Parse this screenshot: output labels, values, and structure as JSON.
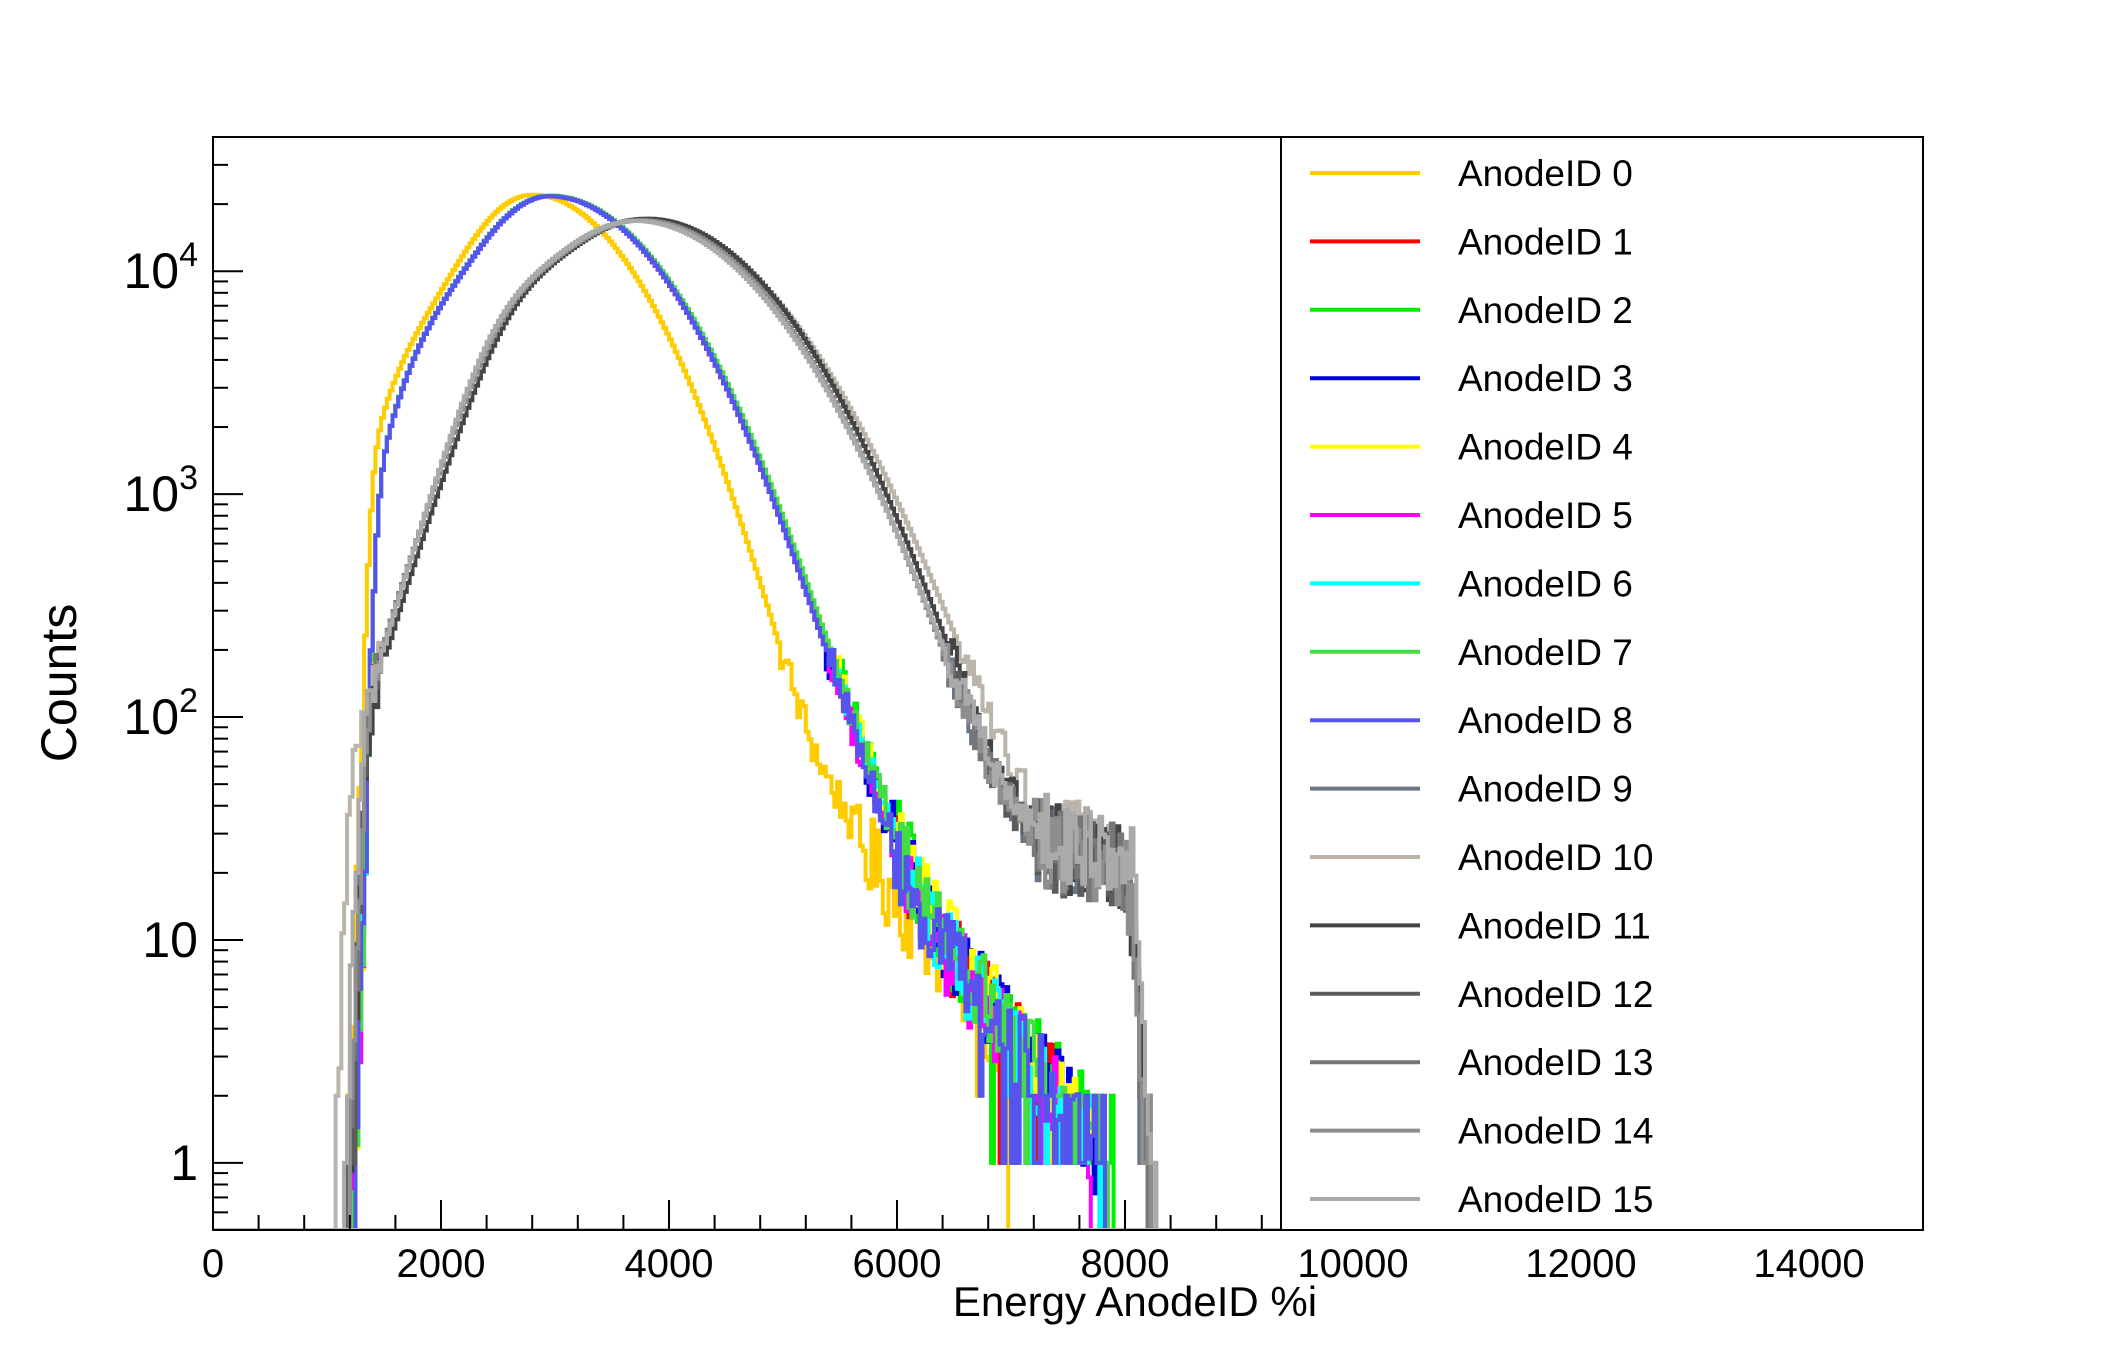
{
  "chart_data": {
    "type": "line",
    "title": "",
    "xlabel": "Energy AnodeID %i",
    "ylabel": "Counts",
    "xlim": [
      0,
      15000
    ],
    "ylim": [
      0.5,
      40000
    ],
    "yscale": "log",
    "grid": false,
    "legend_position": "right-inside",
    "x_ticks": [
      0,
      2000,
      4000,
      6000,
      8000,
      10000,
      12000,
      14000
    ],
    "x_tick_labels": [
      "0",
      "2000",
      "4000",
      "6000",
      "8000",
      "10000",
      "12000",
      "14000"
    ],
    "y_ticks": [
      1,
      10,
      100,
      1000,
      10000
    ],
    "y_tick_labels": [
      {
        "base": "1",
        "exp": ""
      },
      {
        "base": "10",
        "exp": ""
      },
      {
        "base": "10",
        "exp": "2"
      },
      {
        "base": "10",
        "exp": "3"
      },
      {
        "base": "10",
        "exp": "4"
      }
    ],
    "series": [
      {
        "name": "AnodeID 0",
        "color": "#ffcc00",
        "group": "low",
        "peak_x": 2800,
        "peak_y": 22000,
        "w_left": 520,
        "w_right": 700,
        "tail_y": 30,
        "tail_end": 7000,
        "start_x": 1200
      },
      {
        "name": "AnodeID 1",
        "color": "#ff0000",
        "group": "low",
        "peak_x": 2950,
        "peak_y": 21800,
        "w_left": 560,
        "w_right": 780,
        "tail_y": 32,
        "tail_end": 7850,
        "start_x": 1250
      },
      {
        "name": "AnodeID 2",
        "color": "#00ee00",
        "group": "low",
        "peak_x": 2950,
        "peak_y": 21800,
        "w_left": 560,
        "w_right": 790,
        "tail_y": 34,
        "tail_end": 7950,
        "start_x": 1250
      },
      {
        "name": "AnodeID 3",
        "color": "#0000dd",
        "group": "low",
        "peak_x": 2950,
        "peak_y": 21700,
        "w_left": 560,
        "w_right": 780,
        "tail_y": 32,
        "tail_end": 7850,
        "start_x": 1250
      },
      {
        "name": "AnodeID 4",
        "color": "#ffff00",
        "group": "low",
        "peak_x": 2950,
        "peak_y": 21800,
        "w_left": 560,
        "w_right": 790,
        "tail_y": 34,
        "tail_end": 7900,
        "start_x": 1250
      },
      {
        "name": "AnodeID 5",
        "color": "#ff00ff",
        "group": "low",
        "peak_x": 2950,
        "peak_y": 21700,
        "w_left": 560,
        "w_right": 780,
        "tail_y": 30,
        "tail_end": 7800,
        "start_x": 1250
      },
      {
        "name": "AnodeID 6",
        "color": "#00ffff",
        "group": "low",
        "peak_x": 2950,
        "peak_y": 21800,
        "w_left": 560,
        "w_right": 790,
        "tail_y": 30,
        "tail_end": 7900,
        "start_x": 1250
      },
      {
        "name": "AnodeID 7",
        "color": "#44dd44",
        "group": "low",
        "peak_x": 2950,
        "peak_y": 21800,
        "w_left": 560,
        "w_right": 790,
        "tail_y": 33,
        "tail_end": 7950,
        "start_x": 1250
      },
      {
        "name": "AnodeID 8",
        "color": "#5555ee",
        "group": "low",
        "peak_x": 2950,
        "peak_y": 21700,
        "w_left": 560,
        "w_right": 780,
        "tail_y": 30,
        "tail_end": 7900,
        "start_x": 1250
      },
      {
        "name": "AnodeID 9",
        "color": "#6a7688",
        "group": "high",
        "peak_x": 3750,
        "peak_y": 17000,
        "w_left": 760,
        "w_right": 880,
        "tail_y": 22,
        "tail_end": 8150,
        "start_x": 1150
      },
      {
        "name": "AnodeID 10",
        "color": "#bbb4ab",
        "group": "high",
        "peak_x": 3750,
        "peak_y": 17000,
        "w_left": 760,
        "w_right": 930,
        "tail_y": 24,
        "tail_end": 8150,
        "start_x": 1000
      },
      {
        "name": "AnodeID 11",
        "color": "#444444",
        "group": "high",
        "peak_x": 3800,
        "peak_y": 17200,
        "w_left": 760,
        "w_right": 880,
        "tail_y": 22,
        "tail_end": 8150,
        "start_x": 1150
      },
      {
        "name": "AnodeID 12",
        "color": "#5c5c5c",
        "group": "high",
        "peak_x": 3750,
        "peak_y": 17000,
        "w_left": 760,
        "w_right": 880,
        "tail_y": 22,
        "tail_end": 8150,
        "start_x": 1150
      },
      {
        "name": "AnodeID 13",
        "color": "#777777",
        "group": "high",
        "peak_x": 3750,
        "peak_y": 16900,
        "w_left": 760,
        "w_right": 880,
        "tail_y": 22,
        "tail_end": 8150,
        "start_x": 1150
      },
      {
        "name": "AnodeID 14",
        "color": "#8e8e8e",
        "group": "high",
        "peak_x": 3750,
        "peak_y": 16900,
        "w_left": 760,
        "w_right": 880,
        "tail_y": 22,
        "tail_end": 8150,
        "start_x": 1150
      },
      {
        "name": "AnodeID 15",
        "color": "#aaaaaa",
        "group": "high",
        "peak_x": 3700,
        "peak_y": 16800,
        "w_left": 740,
        "w_right": 900,
        "tail_y": 24,
        "tail_end": 8200,
        "start_x": 1100
      }
    ]
  }
}
